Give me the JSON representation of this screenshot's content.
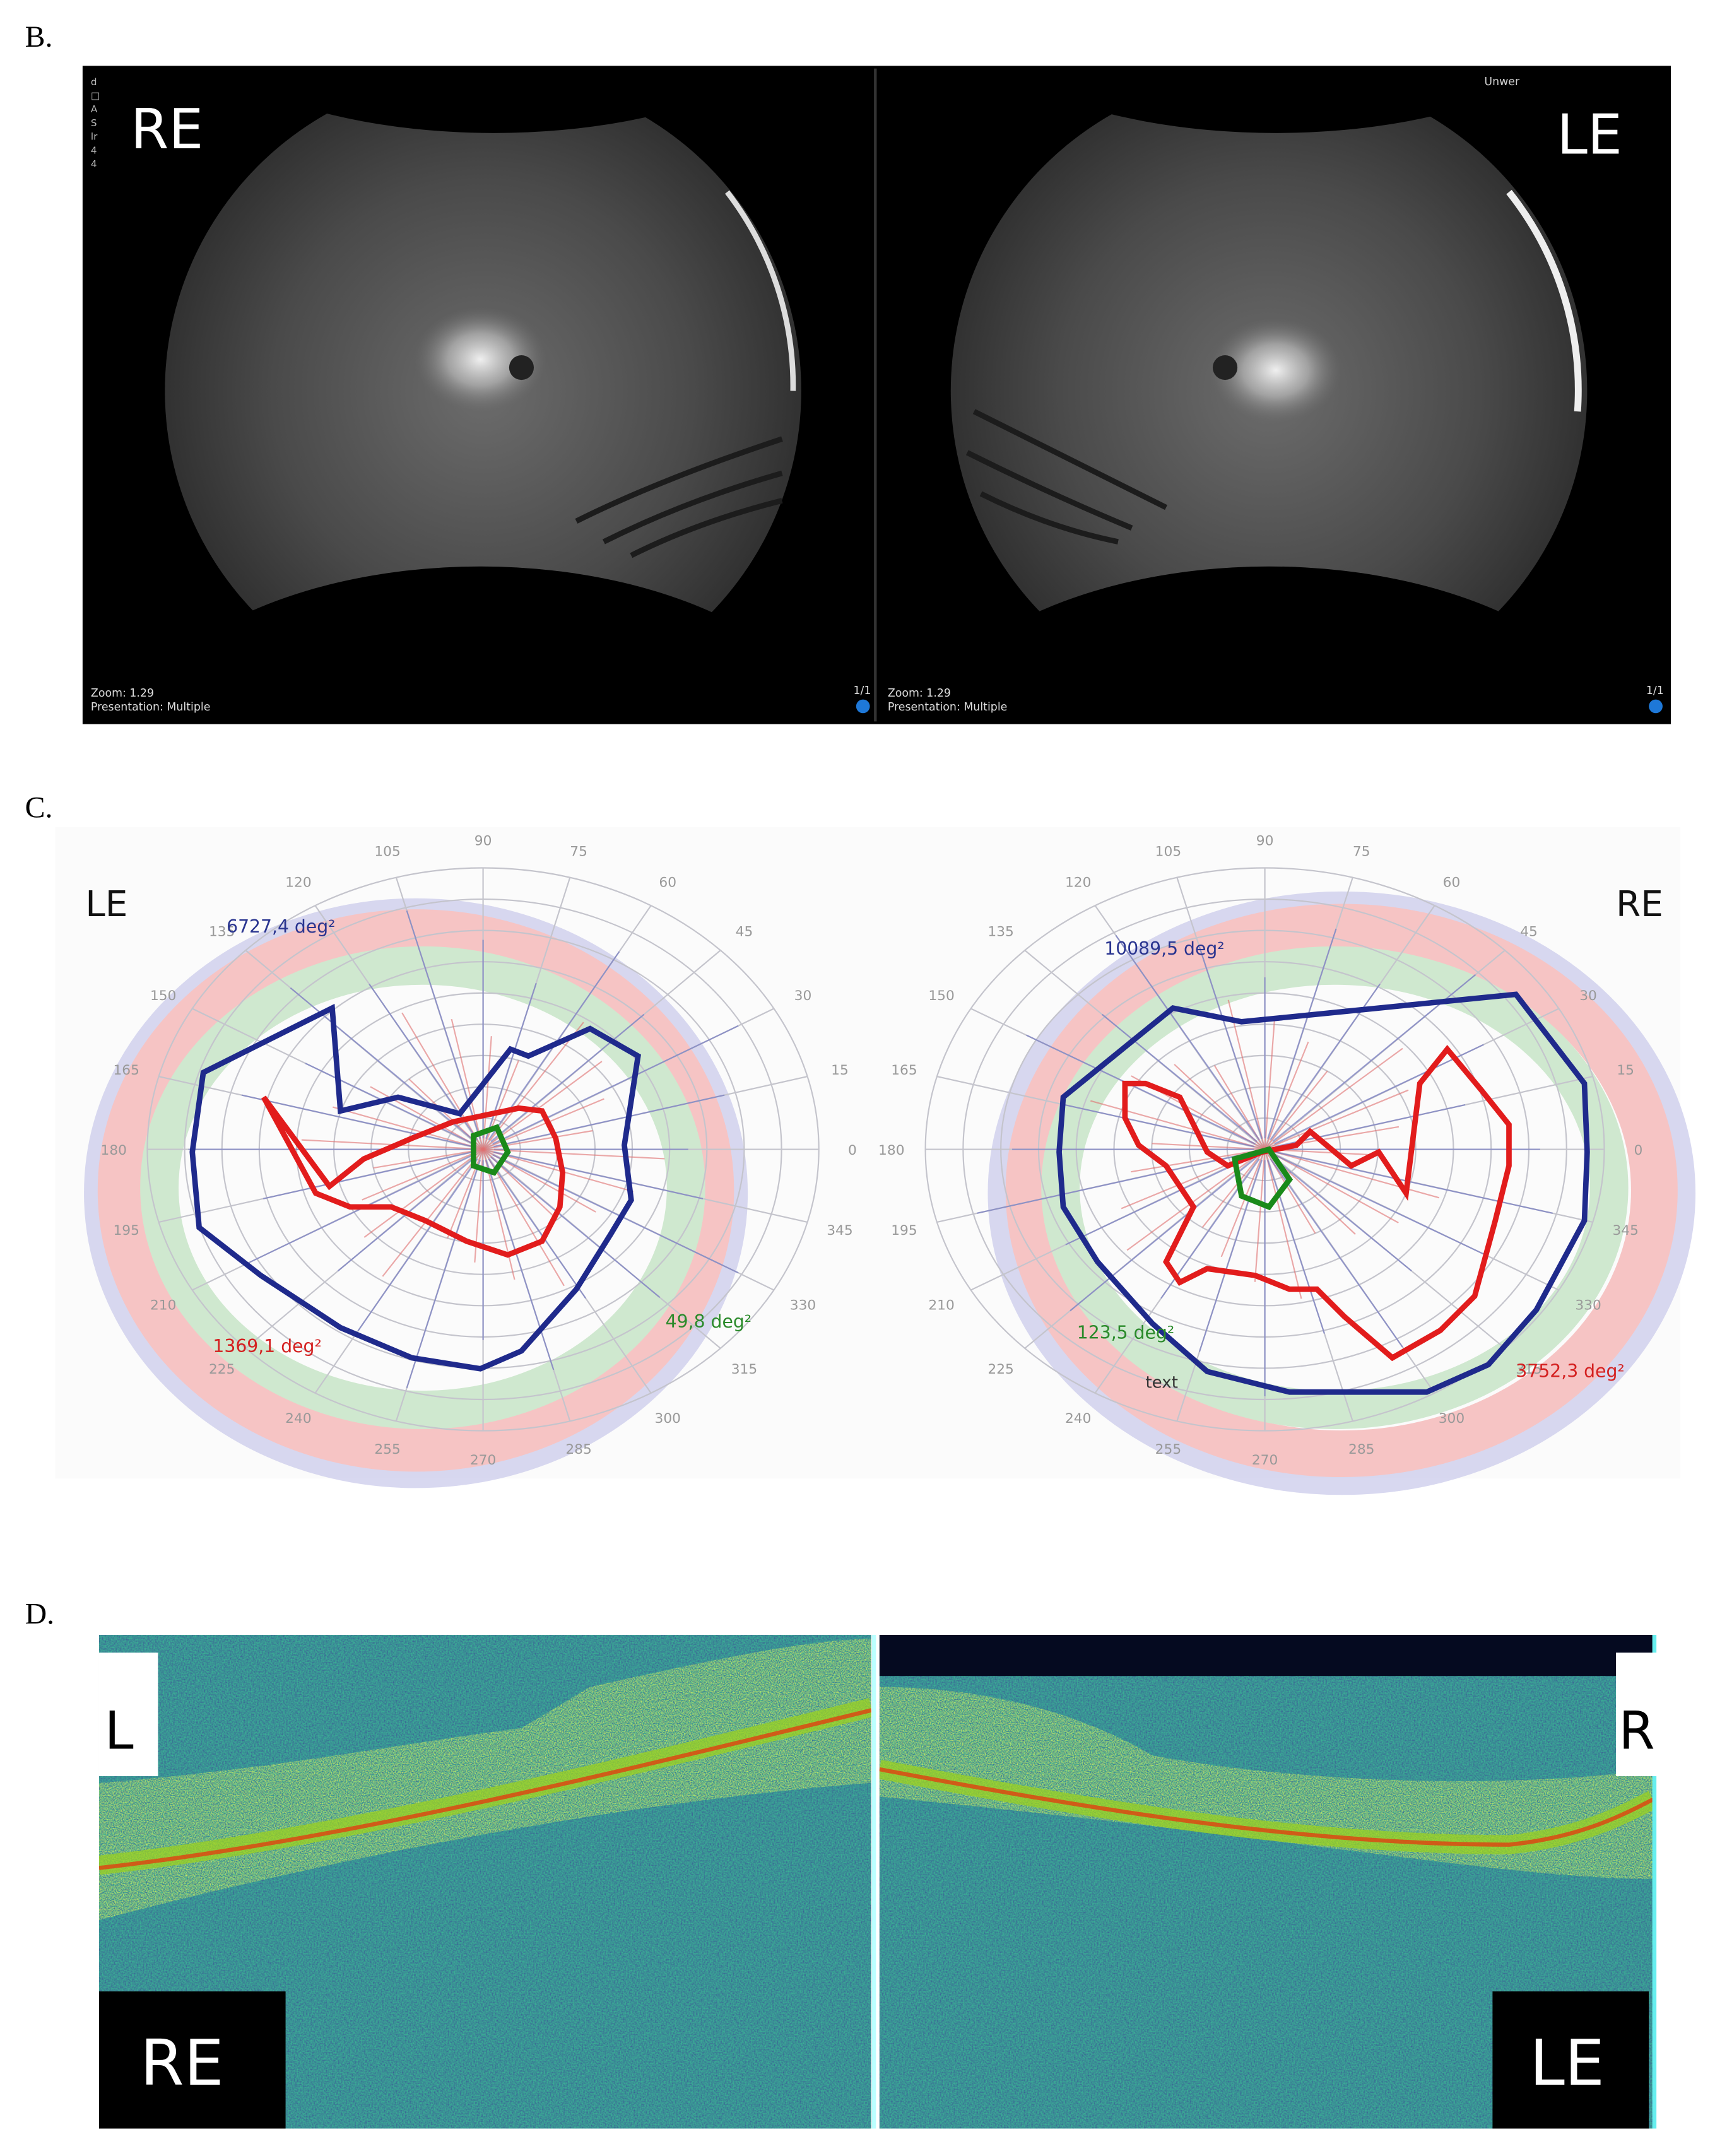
{
  "panel_b": {
    "label": "B.",
    "left_eye": "RE",
    "right_eye": "LE",
    "side_text": [
      "d",
      "□",
      "A",
      "S",
      "lr",
      "4",
      "4"
    ],
    "corner_text": "Unwer",
    "left_info": {
      "zoom": "Zoom: 1.29",
      "presentation": "Presentation: Multiple",
      "page": "1/1"
    },
    "right_info": {
      "zoom": "Zoom: 1.29",
      "presentation": "Presentation: Multiple",
      "page": "1/1"
    }
  },
  "panel_c": {
    "label": "C.",
    "angle_labels": [
      "0",
      "15",
      "30",
      "45",
      "60",
      "75",
      "90",
      "105",
      "120",
      "135",
      "150",
      "165",
      "180",
      "195",
      "210",
      "225",
      "240",
      "255",
      "270",
      "285",
      "300",
      "315",
      "330",
      "345"
    ],
    "left": {
      "eye": "LE",
      "blue_area": "6727,4 deg²",
      "red_area": "1369,1 deg²",
      "green_area": "49,8 deg²"
    },
    "right": {
      "eye": "RE",
      "blue_area": "10089,5 deg²",
      "green_area": "123,5 deg²",
      "note": "text",
      "red_area": "3752,3 deg²"
    }
  },
  "panel_d": {
    "label": "D.",
    "left_marker": "L",
    "right_marker": "R",
    "left_eye": "RE",
    "right_eye": "LE"
  }
}
